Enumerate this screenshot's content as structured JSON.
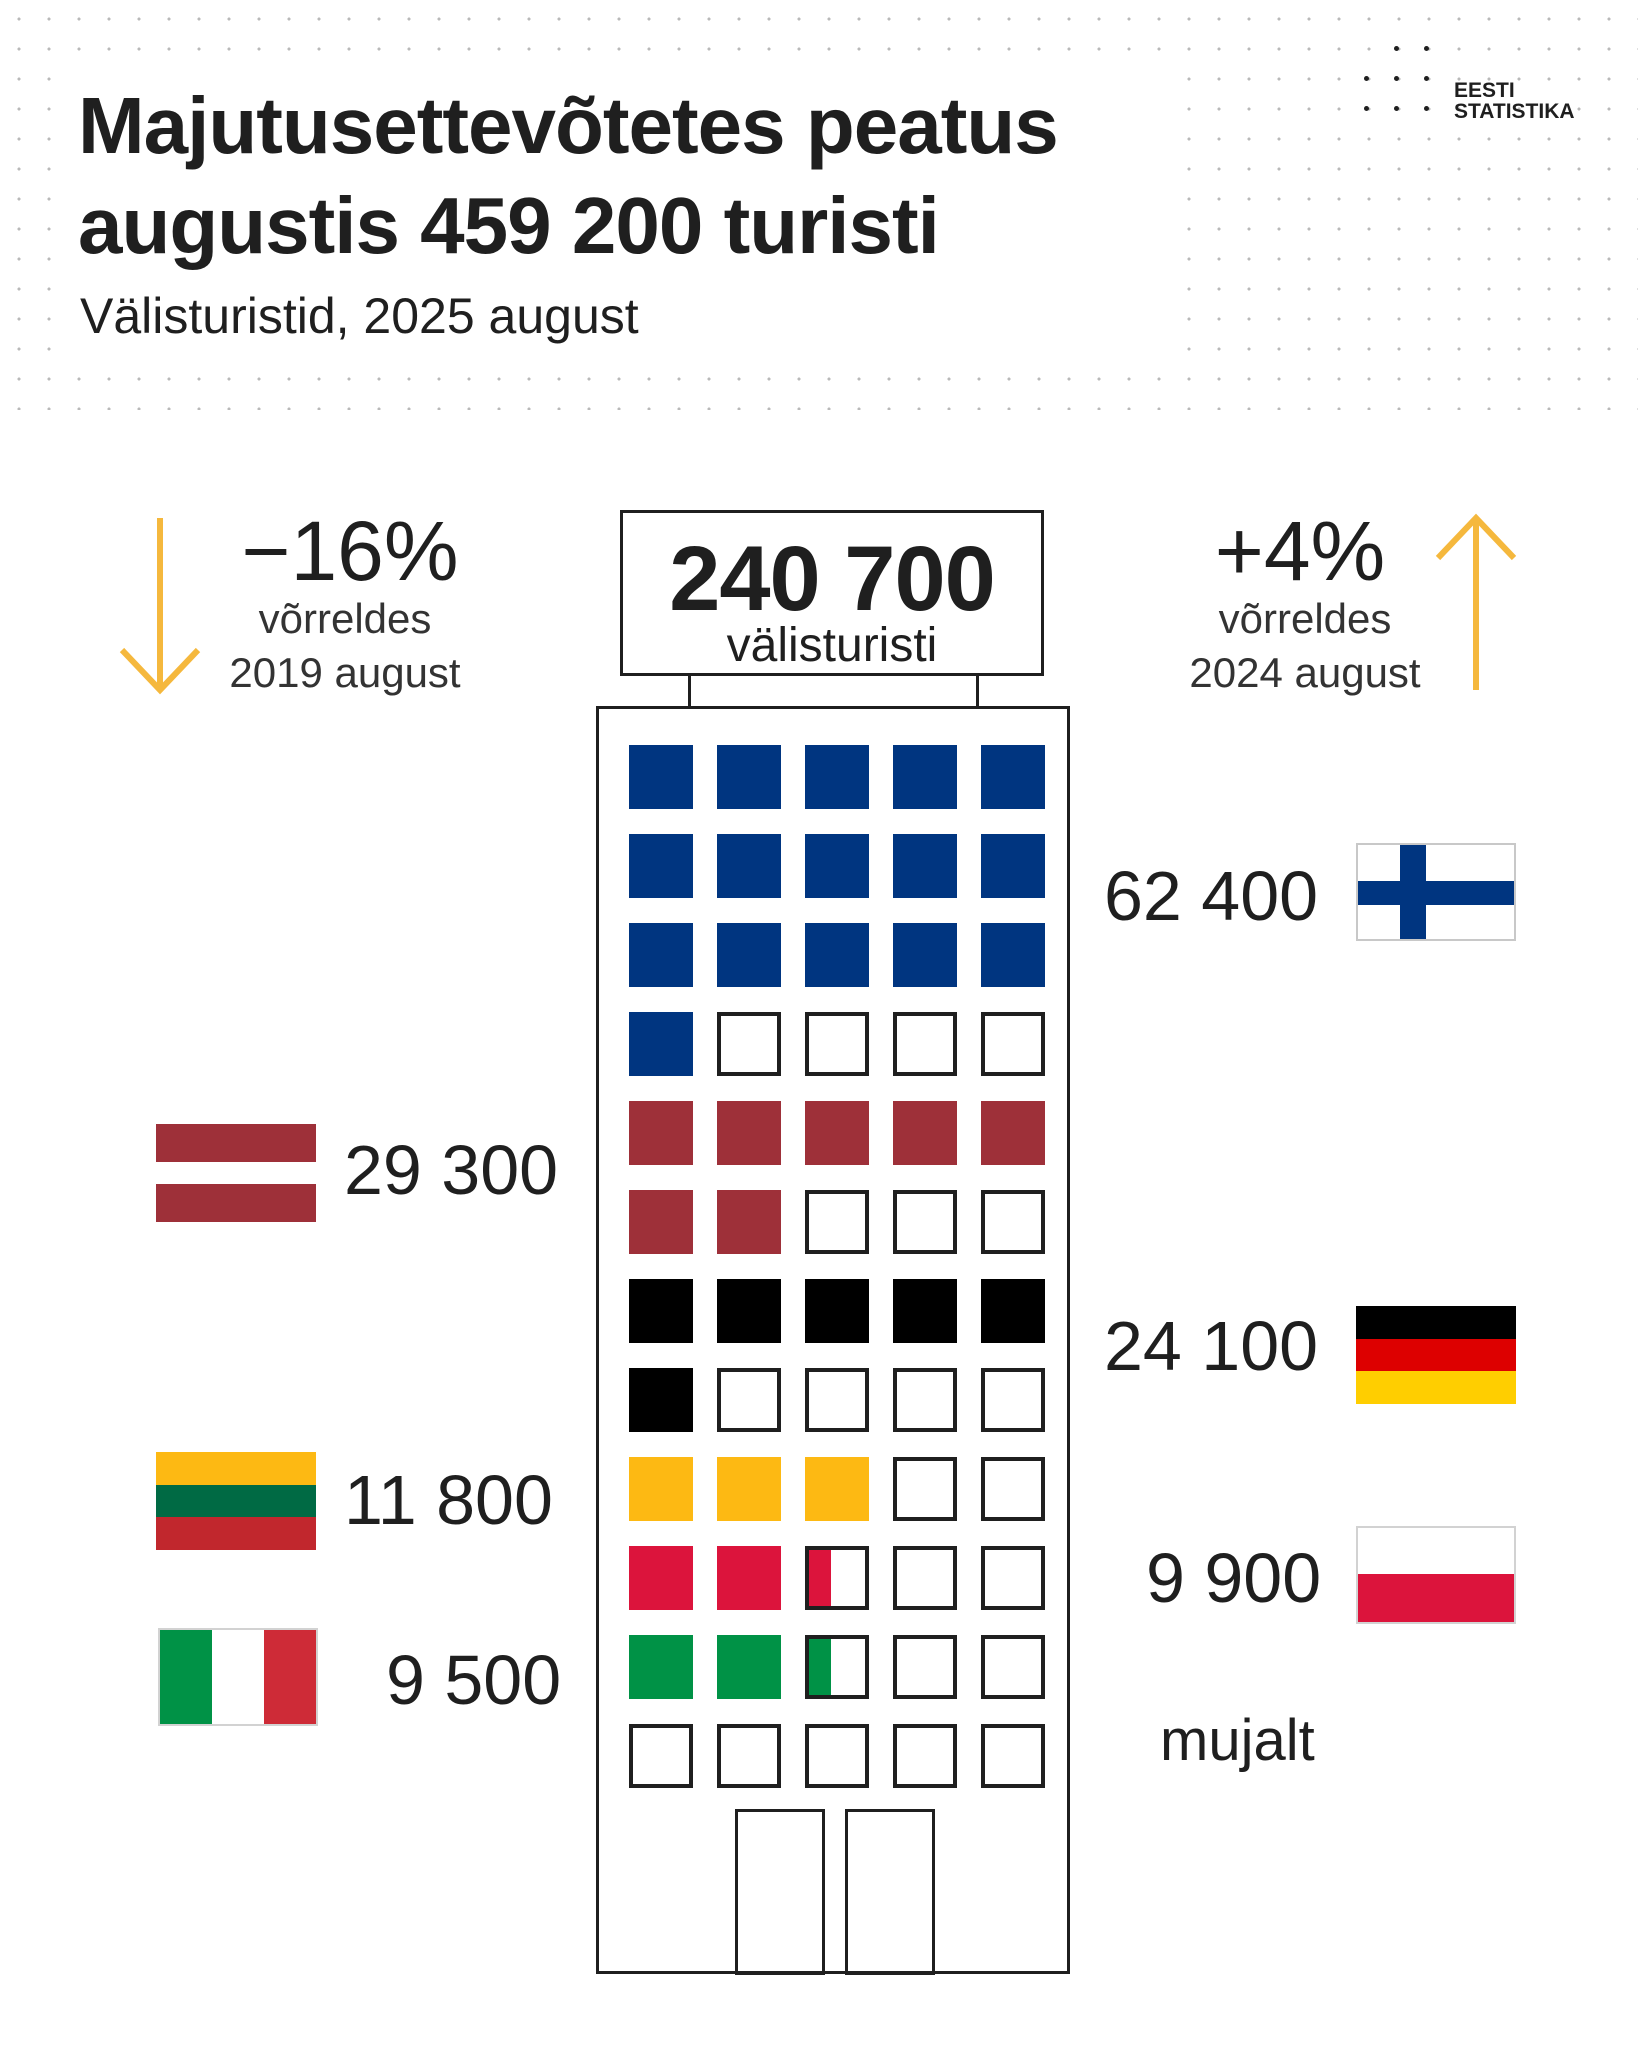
{
  "header": {
    "title_line1": "Majutusettevõtetes peatus",
    "title_line2": "augustis 459 200 turisti",
    "subtitle": "Välisturistid, 2025 august",
    "logo_line1": "EESTI",
    "logo_line2": "STATISTIKA"
  },
  "comparisons": {
    "left": {
      "change": "−16%",
      "line1": "võrreldes",
      "line2": "2019 august",
      "direction": "down",
      "arrow_color": "#F5B83D"
    },
    "right": {
      "change": "+4%",
      "line1": "võrreldes",
      "line2": "2024 august",
      "direction": "up",
      "arrow_color": "#F5B83D"
    }
  },
  "sign": {
    "value": "240 700",
    "label": "välisturisti"
  },
  "chart_data": {
    "type": "pictogram",
    "unit_note": "one filled window ≈ 4 000 visitors",
    "total": 240700,
    "categories": [
      {
        "country": "Finland",
        "label": "62 400",
        "value": 62400,
        "windows": 16,
        "color": "#003580",
        "flag": "finland"
      },
      {
        "country": "Latvia",
        "label": "29 300",
        "value": 29300,
        "windows": 7,
        "color": "#9E3039",
        "flag": "latvia"
      },
      {
        "country": "Germany",
        "label": "24 100",
        "value": 24100,
        "windows": 6,
        "color": "#000000",
        "flag": "germany"
      },
      {
        "country": "Lithuania",
        "label": "11 800",
        "value": 11800,
        "windows": 3,
        "color": "#FDB913",
        "flag": "lithuania"
      },
      {
        "country": "Poland",
        "label": "9 900",
        "value": 9900,
        "windows": 2.4,
        "color": "#DC143C",
        "flag": "poland"
      },
      {
        "country": "Italy",
        "label": "9 500",
        "value": 9500,
        "windows": 2.4,
        "color": "#009246",
        "flag": "italy"
      }
    ],
    "other_label": "mujalt"
  },
  "colors": {
    "finland_blue": "#003580",
    "latvia_red": "#9E3039",
    "germany_black": "#000000",
    "germany_red": "#DD0000",
    "germany_gold": "#FFCE00",
    "lithuania_yellow": "#FDB913",
    "lithuania_green": "#006A44",
    "lithuania_red": "#C1272D",
    "poland_red": "#DC143C",
    "italy_green": "#009246",
    "italy_red": "#CE2B37",
    "accent_arrow": "#F5B83D"
  }
}
